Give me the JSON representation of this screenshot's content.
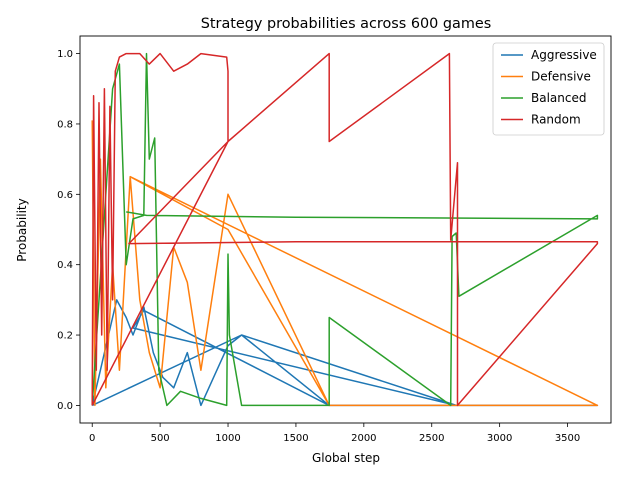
{
  "chart_data": {
    "type": "line",
    "title": "Strategy probabilities across 600 games",
    "xlabel": "Global step",
    "ylabel": "Probability",
    "xlim": [
      -90,
      3820
    ],
    "ylim": [
      -0.05,
      1.05
    ],
    "xticks": [
      0,
      500,
      1000,
      1500,
      2000,
      2500,
      3000,
      3500
    ],
    "xtick_labels": [
      "0",
      "500",
      "1000",
      "1500",
      "2000",
      "2500",
      "3000",
      "3500"
    ],
    "yticks": [
      0.0,
      0.2,
      0.4,
      0.6,
      0.8,
      1.0
    ],
    "ytick_labels": [
      "0.0",
      "0.2",
      "0.4",
      "0.6",
      "0.8",
      "1.0"
    ],
    "grid": false,
    "legend_position": "top-right",
    "series": [
      {
        "name": "Aggressive",
        "color": "#1f77b4",
        "points": [
          [
            0,
            0.0
          ],
          [
            60,
            0.1
          ],
          [
            120,
            0.2
          ],
          [
            180,
            0.3
          ],
          [
            250,
            0.25
          ],
          [
            300,
            0.2
          ],
          [
            380,
            0.28
          ],
          [
            450,
            0.15
          ],
          [
            520,
            0.08
          ],
          [
            600,
            0.05
          ],
          [
            700,
            0.15
          ],
          [
            800,
            0.0
          ],
          [
            1000,
            0.17
          ],
          [
            1100,
            0.2
          ],
          [
            1745,
            0.0
          ],
          [
            2645,
            0.0
          ],
          [
            3720,
            0.0
          ],
          [
            1745,
            0.0
          ],
          [
            380,
            0.27
          ],
          [
            300,
            0.22
          ],
          [
            2680,
            0.0
          ],
          [
            1100,
            0.2
          ],
          [
            0,
            0.0
          ]
        ]
      },
      {
        "name": "Defensive",
        "color": "#ff7f0e",
        "points": [
          [
            0,
            0.81
          ],
          [
            20,
            0.0
          ],
          [
            60,
            0.7
          ],
          [
            100,
            0.05
          ],
          [
            150,
            0.4
          ],
          [
            200,
            0.1
          ],
          [
            280,
            0.65
          ],
          [
            350,
            0.3
          ],
          [
            420,
            0.15
          ],
          [
            500,
            0.05
          ],
          [
            600,
            0.45
          ],
          [
            700,
            0.35
          ],
          [
            800,
            0.1
          ],
          [
            1000,
            0.6
          ],
          [
            1745,
            0.0
          ],
          [
            1745,
            0.0
          ],
          [
            2700,
            0.0
          ],
          [
            3720,
            0.0
          ],
          [
            3720,
            0.0
          ],
          [
            280,
            0.65
          ],
          [
            1000,
            0.5
          ],
          [
            1745,
            0.0
          ]
        ]
      },
      {
        "name": "Balanced",
        "color": "#2ca02c",
        "points": [
          [
            0,
            0.0
          ],
          [
            50,
            0.3
          ],
          [
            100,
            0.6
          ],
          [
            150,
            0.9
          ],
          [
            200,
            0.97
          ],
          [
            250,
            0.4
          ],
          [
            300,
            0.53
          ],
          [
            380,
            0.54
          ],
          [
            400,
            1.0
          ],
          [
            420,
            0.7
          ],
          [
            460,
            0.76
          ],
          [
            490,
            0.1
          ],
          [
            550,
            0.0
          ],
          [
            650,
            0.04
          ],
          [
            800,
            0.02
          ],
          [
            990,
            0.0
          ],
          [
            1000,
            0.43
          ],
          [
            1010,
            0.2
          ],
          [
            1100,
            0.0
          ],
          [
            1745,
            0.0
          ],
          [
            1745,
            0.25
          ],
          [
            2640,
            0.0
          ],
          [
            2650,
            0.48
          ],
          [
            2680,
            0.49
          ],
          [
            2700,
            0.31
          ],
          [
            3720,
            0.54
          ],
          [
            3720,
            0.53
          ],
          [
            1500,
            0.535
          ],
          [
            400,
            0.54
          ],
          [
            250,
            0.55
          ]
        ]
      },
      {
        "name": "Random",
        "color": "#d62728",
        "points": [
          [
            0,
            0.0
          ],
          [
            10,
            0.88
          ],
          [
            30,
            0.1
          ],
          [
            50,
            0.86
          ],
          [
            70,
            0.2
          ],
          [
            90,
            0.9
          ],
          [
            110,
            0.1
          ],
          [
            130,
            0.85
          ],
          [
            150,
            0.3
          ],
          [
            170,
            0.95
          ],
          [
            200,
            0.99
          ],
          [
            250,
            1.0
          ],
          [
            350,
            1.0
          ],
          [
            420,
            0.97
          ],
          [
            500,
            1.0
          ],
          [
            600,
            0.95
          ],
          [
            700,
            0.97
          ],
          [
            800,
            1.0
          ],
          [
            990,
            0.99
          ],
          [
            1000,
            0.95
          ],
          [
            1000,
            0.75
          ],
          [
            1745,
            1.0
          ],
          [
            1745,
            0.75
          ],
          [
            2630,
            1.0
          ],
          [
            2640,
            0.47
          ],
          [
            2690,
            0.69
          ],
          [
            2690,
            0.0
          ],
          [
            3720,
            0.46
          ],
          [
            3720,
            0.465
          ],
          [
            1500,
            0.465
          ],
          [
            270,
            0.46
          ],
          [
            1000,
            0.75
          ],
          [
            0,
            0.0
          ]
        ]
      }
    ]
  }
}
